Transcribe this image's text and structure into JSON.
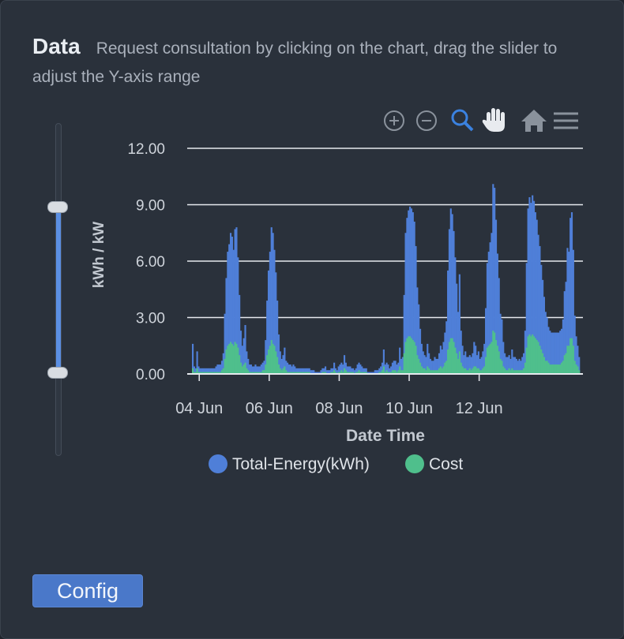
{
  "header": {
    "title": "Data",
    "description": "Request consultation by clicking on the chart, drag the slider to adjust the Y-axis range"
  },
  "slider": {
    "upper_value": 9.0,
    "lower_value": 0.0
  },
  "toolbar": {
    "icons": [
      "zoom-in-icon",
      "zoom-out-icon",
      "zoom-selection-icon",
      "pan-hand-icon",
      "home-reset-icon",
      "menu-icon"
    ]
  },
  "config_label": "Config",
  "colors": {
    "energy": "#4f7fd8",
    "cost": "#4fbf8c",
    "active_tool": "#3b82e0"
  },
  "chart_data": {
    "type": "bar",
    "title": "",
    "xlabel": "Date Time",
    "ylabel": "kWh / kW",
    "ylim": [
      0,
      12
    ],
    "yticks": [
      "12.00",
      "9.00",
      "6.00",
      "3.00",
      "0.00"
    ],
    "xticks": [
      "04 Jun",
      "06 Jun",
      "08 Jun",
      "10 Jun",
      "12 Jun"
    ],
    "grid": true,
    "legend_position": "bottom",
    "bin": "hourly",
    "x_start": "03 Jun 19:00",
    "series": [
      {
        "name": "Total-Energy(kWh)",
        "values": [
          1.6,
          0.4,
          0.3,
          1.2,
          0.4,
          0.3,
          0.3,
          0.3,
          0.3,
          0.3,
          0.3,
          0.3,
          0.3,
          0.3,
          0.3,
          0.3,
          0.4,
          0.5,
          0.5,
          0.5,
          0.7,
          1.1,
          3.2,
          5.1,
          6.5,
          6.9,
          7.5,
          7.3,
          6.6,
          7.7,
          7.8,
          6.2,
          4.2,
          2.3,
          1.5,
          1.9,
          2.6,
          1.2,
          0.8,
          0.5,
          0.5,
          0.4,
          0.4,
          0.5,
          0.4,
          0.4,
          0.4,
          0.5,
          0.6,
          0.7,
          1.8,
          3.9,
          5.5,
          6.5,
          7.8,
          7.5,
          6.6,
          5.4,
          3.9,
          2.1,
          1.2,
          0.8,
          1.0,
          1.4,
          0.7,
          0.6,
          0.5,
          0.5,
          0.4,
          0.5,
          0.4,
          0.3,
          0.3,
          0.3,
          0.3,
          0.3,
          0.3,
          0.3,
          0.3,
          0.3,
          0.3,
          0.2,
          0.2,
          0.2,
          0.1,
          0.1,
          0.1,
          0.1,
          0.2,
          0.3,
          0.3,
          0.4,
          0.2,
          0.2,
          0.2,
          0.3,
          0.3,
          0.6,
          0.3,
          0.2,
          0.4,
          0.5,
          0.6,
          0.5,
          1.0,
          0.6,
          0.4,
          0.4,
          0.4,
          0.3,
          0.3,
          0.2,
          0.3,
          0.5,
          0.6,
          0.5,
          0.4,
          0.3,
          0.3,
          0.3,
          0.1,
          0.1,
          0.1,
          0.1,
          0.1,
          0.2,
          0.2,
          0.2,
          0.3,
          0.4,
          0.6,
          1.3,
          0.5,
          0.6,
          0.5,
          0.3,
          0.4,
          0.6,
          0.7,
          0.7,
          0.5,
          0.6,
          1.4,
          0.8,
          0.9,
          4.2,
          7.5,
          8.3,
          8.7,
          8.9,
          8.8,
          8.6,
          8.1,
          6.8,
          4.6,
          3.7,
          2.4,
          1.6,
          1.2,
          1.0,
          0.9,
          1.6,
          1.1,
          0.8,
          0.7,
          0.7,
          0.9,
          0.8,
          0.8,
          1.1,
          1.5,
          1.3,
          1.7,
          2.2,
          2.8,
          5.5,
          7.7,
          8.8,
          8.5,
          7.6,
          6.2,
          4.8,
          3.3,
          5.3,
          2.3,
          1.5,
          1.0,
          1.2,
          0.9,
          0.9,
          1.0,
          0.9,
          1.1,
          1.7,
          1.5,
          1.0,
          1.2,
          0.8,
          0.9,
          1.2,
          1.6,
          3.5,
          5.9,
          6.5,
          7.0,
          7.5,
          10.1,
          9.9,
          8.2,
          6.4,
          5.1,
          3.2,
          2.9,
          1.7,
          1.1,
          0.9,
          0.9,
          1.0,
          0.8,
          1.3,
          0.9,
          0.9,
          0.8,
          0.7,
          0.8,
          0.7,
          0.9,
          1.1,
          2.3,
          5.9,
          8.8,
          9.4,
          9.1,
          9.5,
          9.2,
          8.6,
          8.2,
          7.4,
          6.8,
          5.8,
          5.0,
          4.1,
          3.3,
          3.0,
          2.5,
          2.3,
          2.2,
          2.2,
          2.2,
          2.2,
          2.2,
          2.2,
          2.3,
          2.4,
          2.9,
          4.4,
          4.9,
          6.7,
          6.5,
          8.3,
          8.6,
          6.6,
          3.1,
          2.0,
          1.5,
          0.9
        ]
      },
      {
        "name": "Cost",
        "values": [
          0.3,
          0.1,
          0.1,
          0.3,
          0.1,
          0.1,
          0.1,
          0.1,
          0.1,
          0.1,
          0.1,
          0.1,
          0.1,
          0.1,
          0.1,
          0.1,
          0.1,
          0.1,
          0.1,
          0.1,
          0.2,
          0.3,
          0.8,
          1.3,
          1.5,
          1.6,
          1.7,
          1.6,
          1.5,
          1.7,
          1.6,
          1.4,
          1.0,
          0.6,
          0.4,
          0.5,
          0.6,
          0.3,
          0.2,
          0.1,
          0.1,
          0.1,
          0.1,
          0.1,
          0.1,
          0.1,
          0.1,
          0.1,
          0.2,
          0.2,
          0.5,
          1.0,
          1.3,
          1.5,
          1.8,
          1.6,
          1.5,
          1.2,
          0.9,
          0.5,
          0.3,
          0.2,
          0.3,
          0.4,
          0.2,
          0.1,
          0.1,
          0.1,
          0.1,
          0.1,
          0.1,
          0.1,
          0.1,
          0.1,
          0.1,
          0.1,
          0.1,
          0.1,
          0.1,
          0.1,
          0.1,
          0.0,
          0.0,
          0.0,
          0.0,
          0.0,
          0.0,
          0.0,
          0.0,
          0.1,
          0.1,
          0.1,
          0.0,
          0.0,
          0.0,
          0.1,
          0.1,
          0.2,
          0.1,
          0.0,
          0.1,
          0.1,
          0.2,
          0.1,
          0.3,
          0.2,
          0.1,
          0.1,
          0.1,
          0.1,
          0.1,
          0.0,
          0.1,
          0.1,
          0.2,
          0.1,
          0.1,
          0.1,
          0.1,
          0.1,
          0.0,
          0.0,
          0.0,
          0.0,
          0.0,
          0.0,
          0.0,
          0.0,
          0.1,
          0.1,
          0.2,
          0.4,
          0.1,
          0.2,
          0.1,
          0.1,
          0.1,
          0.2,
          0.2,
          0.2,
          0.1,
          0.2,
          0.4,
          0.2,
          0.2,
          1.1,
          1.7,
          1.9,
          2.0,
          2.0,
          1.9,
          1.8,
          1.7,
          1.5,
          1.0,
          0.8,
          0.6,
          0.4,
          0.3,
          0.3,
          0.2,
          0.4,
          0.3,
          0.2,
          0.2,
          0.2,
          0.2,
          0.2,
          0.2,
          0.3,
          0.4,
          0.3,
          0.4,
          0.6,
          0.7,
          1.3,
          1.7,
          1.9,
          1.9,
          1.7,
          1.4,
          1.1,
          0.8,
          1.2,
          0.6,
          0.4,
          0.3,
          0.3,
          0.2,
          0.2,
          0.3,
          0.2,
          0.3,
          0.4,
          0.4,
          0.3,
          0.3,
          0.2,
          0.2,
          0.3,
          0.4,
          0.9,
          1.4,
          1.5,
          1.6,
          1.7,
          2.3,
          2.2,
          1.8,
          1.5,
          1.2,
          0.8,
          0.7,
          0.4,
          0.3,
          0.2,
          0.2,
          0.3,
          0.2,
          0.3,
          0.2,
          0.2,
          0.2,
          0.2,
          0.2,
          0.2,
          0.2,
          0.3,
          0.6,
          1.4,
          2.0,
          2.1,
          2.0,
          2.1,
          2.0,
          1.9,
          1.8,
          1.7,
          1.5,
          1.3,
          1.1,
          0.9,
          0.7,
          0.7,
          0.6,
          0.5,
          0.5,
          0.5,
          0.5,
          0.5,
          0.5,
          0.5,
          0.5,
          0.6,
          0.7,
          1.0,
          1.1,
          1.5,
          1.5,
          1.9,
          1.9,
          1.5,
          0.7,
          0.5,
          0.4,
          0.2
        ]
      }
    ]
  }
}
